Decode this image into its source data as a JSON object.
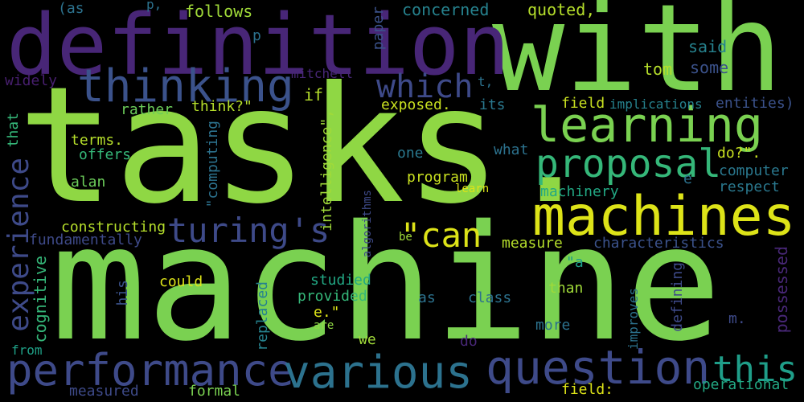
{
  "words": [
    {
      "text": "tasks.",
      "color": "#8fd744"
    },
    {
      "text": "machine",
      "color": "#7ad151"
    },
    {
      "text": "with",
      "color": "#7ad151"
    },
    {
      "text": "definition",
      "color": "#482677"
    },
    {
      "text": "machines",
      "color": "#dde318"
    },
    {
      "text": "learning",
      "color": "#7ad151"
    },
    {
      "text": "thinking",
      "color": "#3b528b"
    },
    {
      "text": "proposal",
      "color": "#35b779"
    },
    {
      "text": "performance",
      "color": "#3e4a89"
    },
    {
      "text": "various",
      "color": "#2c728e"
    },
    {
      "text": "question",
      "color": "#3e4a89"
    },
    {
      "text": "this",
      "color": "#1f9e89"
    },
    {
      "text": "turing's",
      "color": "#3e4a89"
    },
    {
      "text": "\"can",
      "color": "#dde318"
    },
    {
      "text": "which",
      "color": "#3e4a89"
    },
    {
      "text": "experience",
      "color": "#3e4a89"
    },
    {
      "text": "(as",
      "color": "#2c728e"
    },
    {
      "text": "p,",
      "color": "#2c728e"
    },
    {
      "text": "follows",
      "color": "#a0da39"
    },
    {
      "text": "concerned",
      "color": "#26828e"
    },
    {
      "text": "quoted,",
      "color": "#b5de2b"
    },
    {
      "text": "p",
      "color": "#2c728e"
    },
    {
      "text": "said",
      "color": "#26828e"
    },
    {
      "text": "some",
      "color": "#3b528b"
    },
    {
      "text": "tom",
      "color": "#b5de2b"
    },
    {
      "text": "widely",
      "color": "#481f70"
    },
    {
      "text": "mitchell",
      "color": "#482777"
    },
    {
      "text": "t,",
      "color": "#2c728e"
    },
    {
      "text": "if",
      "color": "#b5de2b"
    },
    {
      "text": "rather",
      "color": "#6ccd5a"
    },
    {
      "text": "think?\"",
      "color": "#b5de2b"
    },
    {
      "text": "exposed.",
      "color": "#c8e020"
    },
    {
      "text": "its",
      "color": "#2a788e"
    },
    {
      "text": "field",
      "color": "#c8e020"
    },
    {
      "text": "implications",
      "color": "#26828e"
    },
    {
      "text": "entities)",
      "color": "#3b528b"
    },
    {
      "text": "terms.",
      "color": "#b5de2b"
    },
    {
      "text": "offers",
      "color": "#35b779"
    },
    {
      "text": "one",
      "color": "#2a788e"
    },
    {
      "text": "what",
      "color": "#2c728e"
    },
    {
      "text": "do?\".",
      "color": "#c8e020"
    },
    {
      "text": "computer",
      "color": "#2a788e"
    },
    {
      "text": "respect",
      "color": "#2a788e"
    },
    {
      "text": "e",
      "color": "#2c728e"
    },
    {
      "text": "alan",
      "color": "#6ccd5a"
    },
    {
      "text": "program",
      "color": "#c8e020"
    },
    {
      "text": "learn",
      "color": "#dde318"
    },
    {
      "text": "machinery",
      "color": "#22a884"
    },
    {
      "text": "constructing",
      "color": "#b5de2b"
    },
    {
      "text": "fundamentally",
      "color": "#3e4a89"
    },
    {
      "text": "be",
      "color": "#a0da39"
    },
    {
      "text": "measure",
      "color": "#b5de2b"
    },
    {
      "text": "characteristics",
      "color": "#3b528b"
    },
    {
      "text": "\"a",
      "color": "#1f9e89"
    },
    {
      "text": "could",
      "color": "#dde318"
    },
    {
      "text": "studied",
      "color": "#22a884"
    },
    {
      "text": "provided",
      "color": "#35b779"
    },
    {
      "text": "as",
      "color": "#2c728e"
    },
    {
      "text": "class",
      "color": "#2c728e"
    },
    {
      "text": "than",
      "color": "#a0da39"
    },
    {
      "text": "e.\"",
      "color": "#dde318"
    },
    {
      "text": "are",
      "color": "#8fd744"
    },
    {
      "text": "m.",
      "color": "#3e4a89"
    },
    {
      "text": "more",
      "color": "#2c728e"
    },
    {
      "text": "we",
      "color": "#a0da39"
    },
    {
      "text": "do",
      "color": "#482777"
    },
    {
      "text": "from",
      "color": "#1fa187"
    },
    {
      "text": "measured",
      "color": "#3e4a89"
    },
    {
      "text": "formal",
      "color": "#7ad151"
    },
    {
      "text": "field:",
      "color": "#dde318"
    },
    {
      "text": "operational",
      "color": "#22a884"
    },
    {
      "text": "that",
      "color": "#35b779"
    },
    {
      "text": "cognitive",
      "color": "#35b779"
    },
    {
      "text": "his",
      "color": "#3b528b"
    },
    {
      "text": "paper",
      "color": "#3b528b"
    },
    {
      "text": "\"computing",
      "color": "#2c728e"
    },
    {
      "text": "intelligence\",",
      "color": "#a0da39"
    },
    {
      "text": "algorithms",
      "color": "#3e4a89"
    },
    {
      "text": "replaced",
      "color": "#26828e"
    },
    {
      "text": "improves",
      "color": "#2c728e"
    },
    {
      "text": "defining",
      "color": "#3e4a89"
    },
    {
      "text": "possessed",
      "color": "#482777"
    }
  ]
}
